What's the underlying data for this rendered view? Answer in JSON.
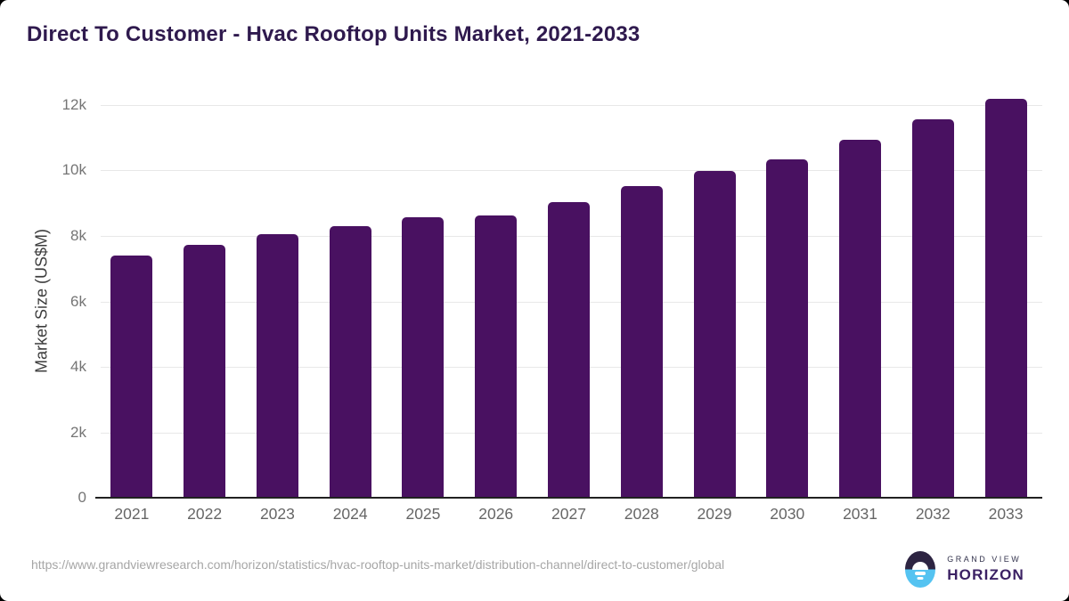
{
  "title": "Direct To Customer - Hvac Rooftop Units Market, 2021-2033",
  "chart_data": {
    "type": "bar",
    "categories": [
      "2021",
      "2022",
      "2023",
      "2024",
      "2025",
      "2026",
      "2027",
      "2028",
      "2029",
      "2030",
      "2031",
      "2032",
      "2033"
    ],
    "values": [
      7400,
      7730,
      8050,
      8300,
      8570,
      8620,
      9030,
      9520,
      10000,
      10340,
      10940,
      11560,
      12190
    ],
    "title": "Direct To Customer - Hvac Rooftop Units Market, 2021-2033",
    "xlabel": "",
    "ylabel": "Market Size (US$M)",
    "ylim": [
      0,
      12000
    ],
    "yticks": [
      {
        "value": 0,
        "label": "0"
      },
      {
        "value": 2000,
        "label": "2k"
      },
      {
        "value": 4000,
        "label": "4k"
      },
      {
        "value": 6000,
        "label": "6k"
      },
      {
        "value": 8000,
        "label": "8k"
      },
      {
        "value": 10000,
        "label": "10k"
      },
      {
        "value": 12000,
        "label": "12k"
      }
    ],
    "grid": true,
    "legend": "none",
    "bar_color": "#491161"
  },
  "colors": {
    "title": "#2f1a4e",
    "bar": "#491161",
    "gridline": "#e8e8e8",
    "axis_line": "#212121",
    "tick_label": "#757575"
  },
  "footer": {
    "source_url": "https://www.grandviewresearch.com/horizon/statistics/hvac-rooftop-units-market/distribution-channel/direct-to-customer/global",
    "logo": {
      "top_text": "GRAND VIEW",
      "bottom_text": "HORIZON"
    }
  }
}
